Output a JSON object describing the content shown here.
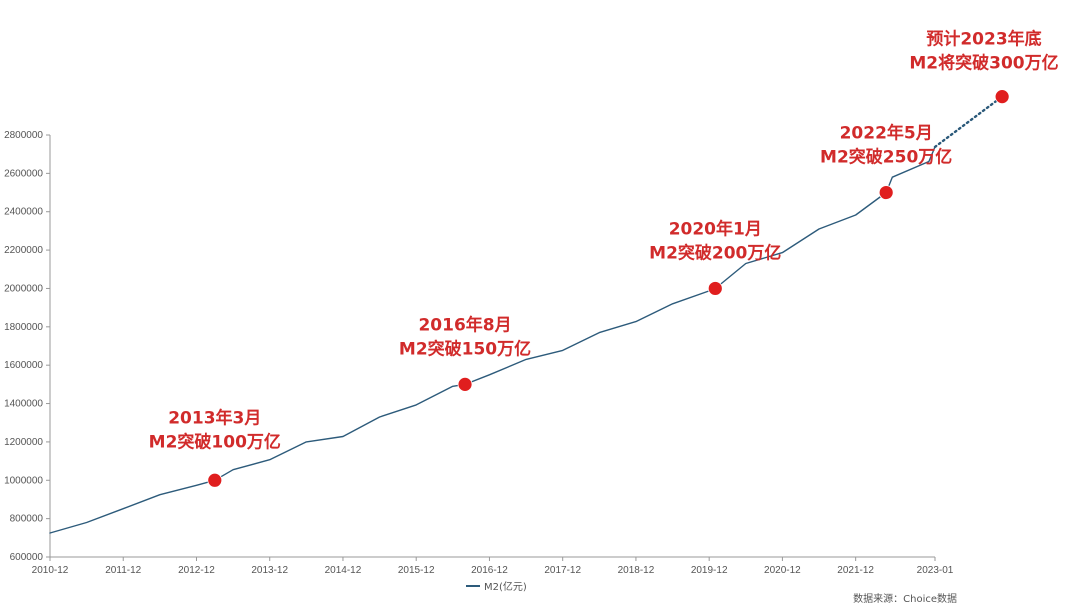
{
  "chart_data": {
    "type": "line",
    "title": "",
    "xlabel": "",
    "ylabel": "",
    "ylim": [
      600000,
      2800000
    ],
    "y_ticks": [
      600000,
      800000,
      1000000,
      1200000,
      1400000,
      1600000,
      1800000,
      2000000,
      2200000,
      2400000,
      2600000,
      2800000
    ],
    "y_tick_labels": [
      "600000",
      "800000",
      "1000000",
      "1200000",
      "1400000",
      "1600000",
      "1800000",
      "2000000",
      "2200000",
      "2400000",
      "2600000",
      "2800000"
    ],
    "x_ticks": [
      "2010-12",
      "2011-12",
      "2012-12",
      "2013-12",
      "2014-12",
      "2015-12",
      "2016-12",
      "2017-12",
      "2018-12",
      "2019-12",
      "2020-12",
      "2021-12",
      "2023-01"
    ],
    "grid": false,
    "legend_position": "bottom-center",
    "series": [
      {
        "name": "M2(亿元)",
        "color": "#2d5b7b",
        "x": [
          "2010-12",
          "2011-06",
          "2011-12",
          "2012-06",
          "2012-12",
          "2013-03",
          "2013-06",
          "2013-12",
          "2014-06",
          "2014-12",
          "2015-06",
          "2015-12",
          "2016-06",
          "2016-08",
          "2016-12",
          "2017-06",
          "2017-12",
          "2018-06",
          "2018-12",
          "2019-06",
          "2019-12",
          "2020-01",
          "2020-06",
          "2020-12",
          "2021-06",
          "2021-12",
          "2022-05",
          "2022-06",
          "2022-12",
          "2023-01"
        ],
        "values": [
          725000,
          780000,
          852000,
          925000,
          974000,
          1000000,
          1055000,
          1107000,
          1200000,
          1228000,
          1330000,
          1393000,
          1490000,
          1500000,
          1550000,
          1630000,
          1677000,
          1770000,
          1827000,
          1920000,
          1987000,
          2000000,
          2130000,
          2187000,
          2310000,
          2383000,
          2500000,
          2580000,
          2662000,
          2738000
        ]
      },
      {
        "name": "预计",
        "color": "#2d5b7b",
        "style": "dotted",
        "x": [
          "2023-01",
          "2023-12"
        ],
        "values": [
          2738000,
          3000000
        ]
      }
    ],
    "highlight_points": [
      {
        "x": "2013-03",
        "value": 1000000
      },
      {
        "x": "2016-08",
        "value": 1500000
      },
      {
        "x": "2020-01",
        "value": 2000000
      },
      {
        "x": "2022-05",
        "value": 2500000
      },
      {
        "x": "2023-12",
        "value": 3000000
      }
    ],
    "annotations": [
      {
        "line1": "2013年3月",
        "line2": "M2突破100万亿"
      },
      {
        "line1": "2016年8月",
        "line2": "M2突破150万亿"
      },
      {
        "line1": "2020年1月",
        "line2": "M2突破200万亿"
      },
      {
        "line1": "2022年5月",
        "line2": "M2突破250万亿"
      },
      {
        "line1": "预计2023年底",
        "line2": "M2将突破300万亿"
      }
    ],
    "source": "数据来源：Choice数据",
    "highlight_color": "#e01e1e",
    "annotation_color": "#d12b2b",
    "axis_color": "#999999"
  }
}
